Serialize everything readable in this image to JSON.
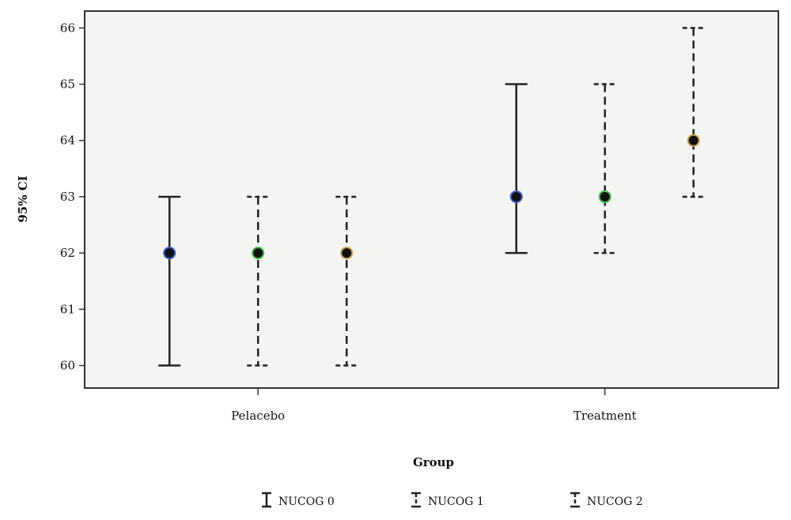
{
  "chart_data": {
    "type": "errorbar",
    "title": "",
    "xlabel": "Group",
    "ylabel": "95% CI",
    "ylim": [
      59.6,
      66.3
    ],
    "yticks": [
      60,
      61,
      62,
      63,
      64,
      65,
      66
    ],
    "categories": [
      "Pelacebo",
      "Treatment"
    ],
    "grid": false,
    "legend_position": "bottom",
    "plot_background": "#f4f4f3",
    "series": [
      {
        "name": "NUCOG 0",
        "line_style": "solid",
        "marker_color": "#3b5cc7",
        "mean": [
          62,
          63
        ],
        "lower": [
          60,
          62
        ],
        "upper": [
          63,
          65
        ]
      },
      {
        "name": "NUCOG 1",
        "line_style": "dashed",
        "marker_color": "#3fbf45",
        "mean": [
          62,
          63
        ],
        "lower": [
          60,
          62
        ],
        "upper": [
          63,
          65
        ]
      },
      {
        "name": "NUCOG 2",
        "line_style": "dashed",
        "marker_color": "#c8a24a",
        "mean": [
          62,
          64
        ],
        "lower": [
          60,
          63
        ],
        "upper": [
          63,
          66
        ]
      }
    ]
  }
}
